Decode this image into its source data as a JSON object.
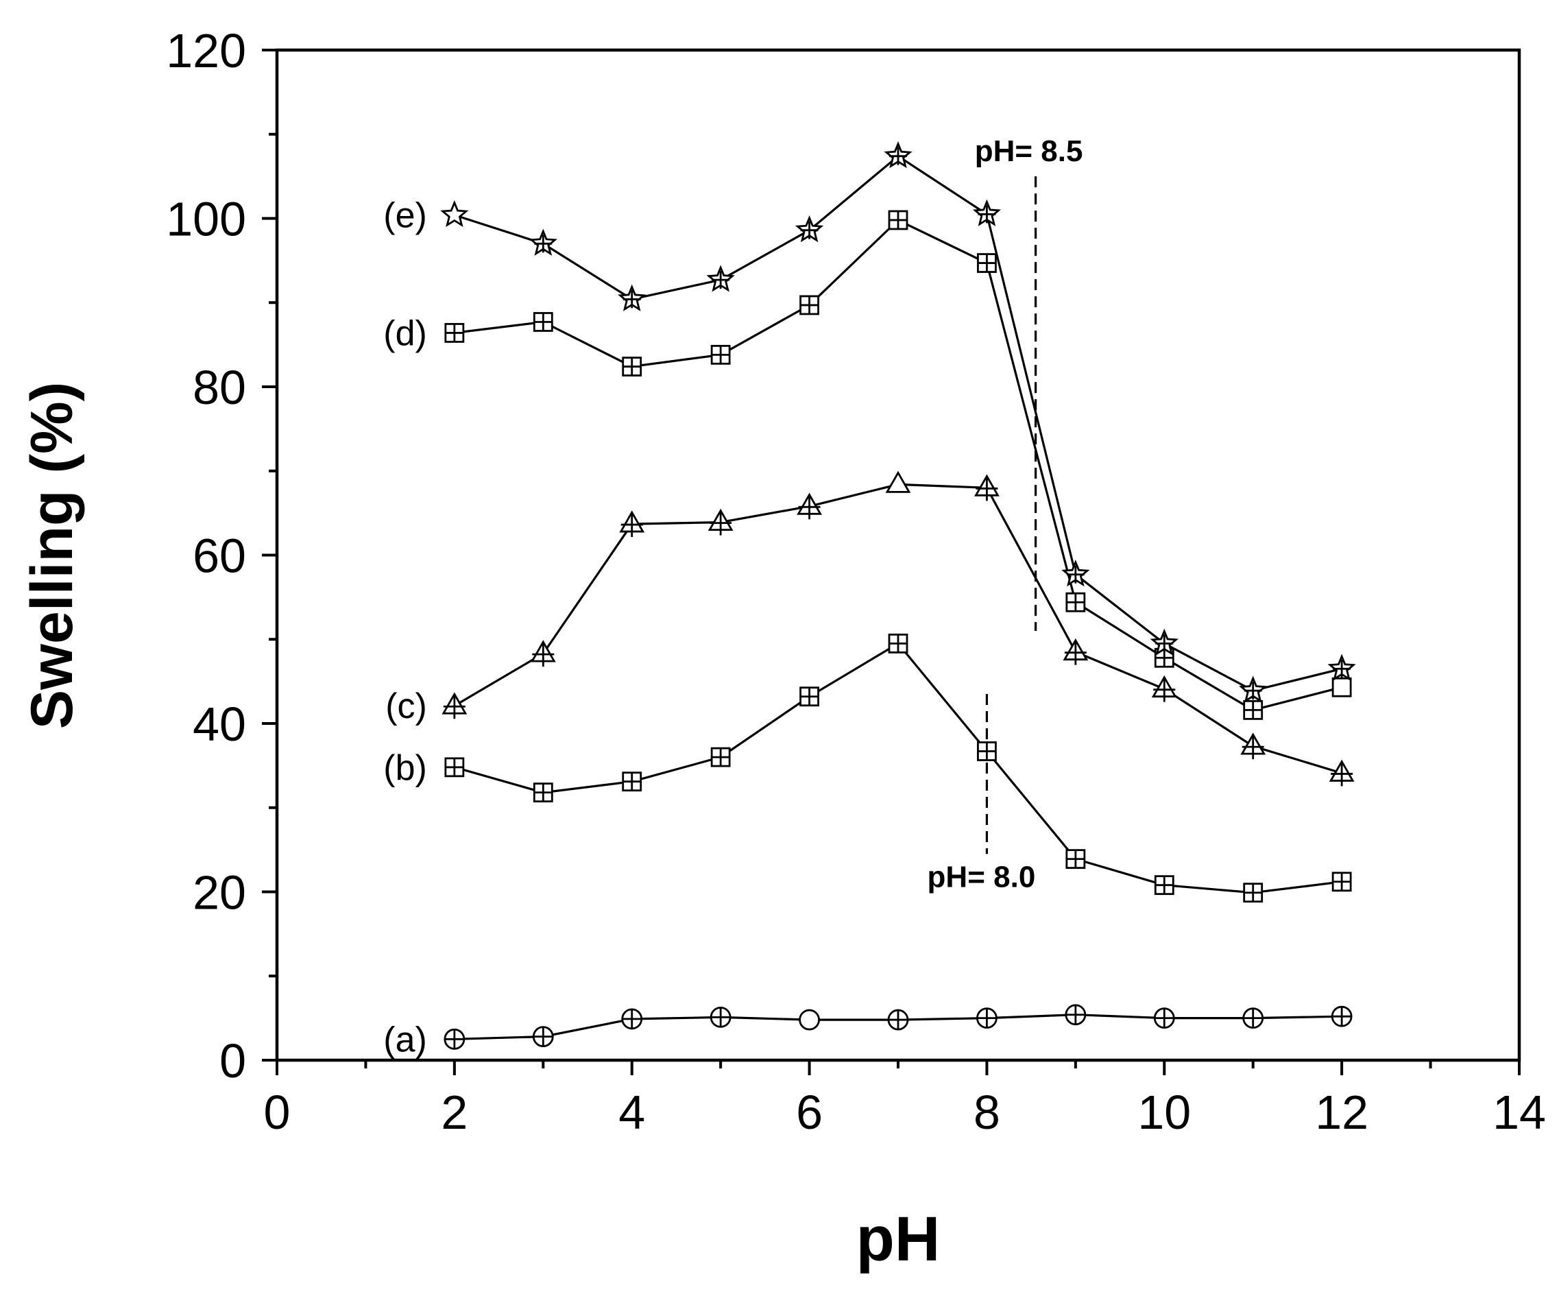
{
  "chart_data": {
    "type": "line",
    "xlabel": "pH",
    "ylabel": "Swelling (%)",
    "xlim": [
      0,
      14
    ],
    "ylim": [
      0,
      120
    ],
    "xticks": [
      0,
      2,
      4,
      6,
      8,
      10,
      12,
      14
    ],
    "yticks": [
      0,
      20,
      40,
      60,
      80,
      100,
      120
    ],
    "grid": false,
    "legend": "none",
    "x": [
      2,
      3,
      4,
      5,
      6,
      7,
      8,
      9,
      10,
      11,
      12
    ],
    "series": [
      {
        "name": "(a)",
        "marker": "circle",
        "values": [
          2.5,
          2.8,
          4.9,
          5.1,
          4.8,
          4.8,
          5.0,
          5.4,
          5.0,
          5.0,
          5.2
        ]
      },
      {
        "name": "(b)",
        "marker": "square",
        "values": [
          34.8,
          31.8,
          33.1,
          36.0,
          43.2,
          49.5,
          36.7,
          23.9,
          20.8,
          19.9,
          21.2
        ]
      },
      {
        "name": "(c)",
        "marker": "triangle",
        "values": [
          42.1,
          48.3,
          63.7,
          63.9,
          65.8,
          68.4,
          68.0,
          48.5,
          44.1,
          37.3,
          34.1
        ]
      },
      {
        "name": "(d)",
        "marker": "square",
        "values": [
          86.4,
          87.7,
          82.4,
          83.8,
          89.7,
          99.8,
          94.7,
          54.4,
          47.8,
          41.6,
          44.3
        ]
      },
      {
        "name": "(e)",
        "marker": "star",
        "values": [
          100.4,
          97.0,
          90.4,
          92.7,
          98.6,
          107.4,
          100.5,
          57.7,
          49.5,
          43.9,
          46.5
        ]
      }
    ],
    "annotations": [
      {
        "text": "pH= 8.5",
        "x": 8.55,
        "y_range": [
          51,
          105
        ]
      },
      {
        "text": "pH= 8.0",
        "x": 8.0,
        "y_range": [
          24.5,
          43.5
        ]
      }
    ]
  }
}
